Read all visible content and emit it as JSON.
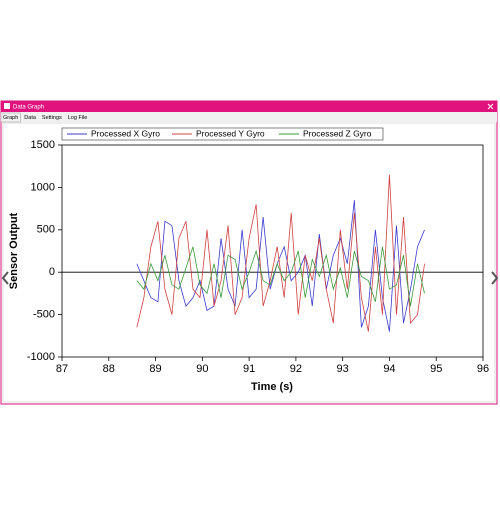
{
  "window": {
    "title": "Data Graph",
    "tabs": [
      "Graph",
      "Data",
      "Settings",
      "Log File"
    ]
  },
  "chart_data": {
    "type": "line",
    "x_label": "Time (s)",
    "y_label": "Sensor Output",
    "x": [
      88.6,
      88.75,
      88.9,
      89.05,
      89.2,
      89.35,
      89.5,
      89.65,
      89.8,
      89.95,
      90.1,
      90.25,
      90.4,
      90.55,
      90.7,
      90.85,
      91,
      91.15,
      91.3,
      91.45,
      91.6,
      91.75,
      91.9,
      92.05,
      92.2,
      92.35,
      92.5,
      92.65,
      92.8,
      92.95,
      93.1,
      93.25,
      93.4,
      93.55,
      93.7,
      93.85,
      94,
      94.15,
      94.3,
      94.45,
      94.6,
      94.75
    ],
    "series": [
      {
        "name": "Processed X Gyro",
        "color": "#3a3ad0",
        "values": [
          100,
          -100,
          -300,
          -350,
          600,
          550,
          -100,
          -400,
          -300,
          -100,
          -450,
          -400,
          400,
          -200,
          -400,
          500,
          -300,
          -200,
          650,
          -200,
          100,
          300,
          -100,
          0,
          200,
          -400,
          450,
          -200,
          200,
          400,
          100,
          850,
          -650,
          -400,
          500,
          -300,
          -700,
          550,
          -600,
          -200,
          300,
          500
        ]
      },
      {
        "name": "Processed Y Gyro",
        "color": "#d04040",
        "values": [
          -650,
          -300,
          300,
          600,
          -200,
          -500,
          400,
          600,
          -200,
          -300,
          500,
          -400,
          -100,
          550,
          -500,
          -300,
          400,
          800,
          -400,
          -100,
          300,
          -300,
          700,
          -500,
          200,
          -100,
          400,
          -200,
          -600,
          500,
          -200,
          700,
          -300,
          -700,
          300,
          -500,
          1150,
          -500,
          650,
          -600,
          -500,
          100
        ]
      },
      {
        "name": "Processed Z Gyro",
        "color": "#3a9a3a",
        "values": [
          -100,
          -200,
          100,
          -100,
          200,
          -150,
          -200,
          50,
          300,
          -150,
          -250,
          100,
          -300,
          200,
          150,
          -200,
          0,
          250,
          -100,
          -150,
          100,
          -100,
          0,
          250,
          -300,
          150,
          -50,
          200,
          -200,
          50,
          -300,
          250,
          -50,
          -100,
          -350,
          300,
          -200,
          -150,
          200,
          -400,
          100,
          -250
        ]
      }
    ],
    "xlim": [
      87,
      96
    ],
    "xticks": [
      87,
      88,
      89,
      90,
      91,
      92,
      93,
      94,
      95,
      96
    ],
    "ylim": [
      -1000,
      1500
    ],
    "yticks": [
      -1000,
      -500,
      0,
      500,
      1000,
      1500
    ]
  }
}
